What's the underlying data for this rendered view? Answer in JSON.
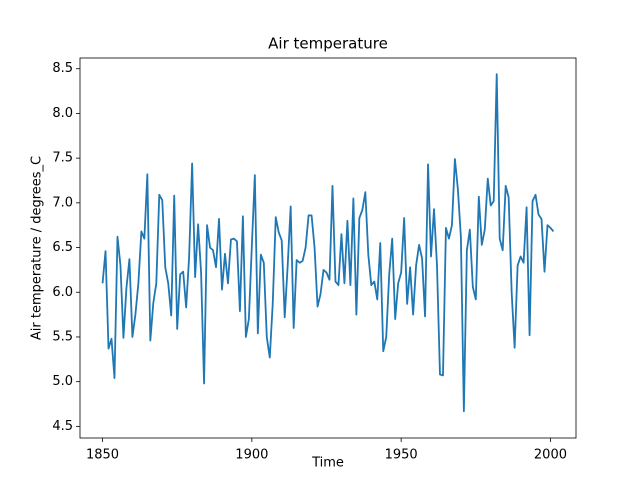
{
  "chart_data": {
    "type": "line",
    "title": "Air temperature",
    "xlabel": "Time",
    "ylabel": "Air temperature / degrees_C",
    "x": [
      1850,
      1851,
      1852,
      1853,
      1854,
      1855,
      1856,
      1857,
      1858,
      1859,
      1860,
      1861,
      1862,
      1863,
      1864,
      1865,
      1866,
      1867,
      1868,
      1869,
      1870,
      1871,
      1872,
      1873,
      1874,
      1875,
      1876,
      1877,
      1878,
      1879,
      1880,
      1881,
      1882,
      1883,
      1884,
      1885,
      1886,
      1887,
      1888,
      1889,
      1890,
      1891,
      1892,
      1893,
      1894,
      1895,
      1896,
      1897,
      1898,
      1899,
      1900,
      1901,
      1902,
      1903,
      1904,
      1905,
      1906,
      1907,
      1908,
      1909,
      1910,
      1911,
      1912,
      1913,
      1914,
      1915,
      1916,
      1917,
      1918,
      1919,
      1920,
      1921,
      1922,
      1923,
      1924,
      1925,
      1926,
      1927,
      1928,
      1929,
      1930,
      1931,
      1932,
      1933,
      1934,
      1935,
      1936,
      1937,
      1938,
      1939,
      1940,
      1941,
      1942,
      1943,
      1944,
      1945,
      1946,
      1947,
      1948,
      1949,
      1950,
      1951,
      1952,
      1953,
      1954,
      1955,
      1956,
      1957,
      1958,
      1959,
      1960,
      1961,
      1962,
      1963,
      1964,
      1965,
      1966,
      1967,
      1968,
      1969,
      1970,
      1971,
      1972,
      1973,
      1974,
      1975,
      1976,
      1977,
      1978,
      1979,
      1980,
      1981,
      1982,
      1983,
      1984,
      1985,
      1986,
      1987,
      1988,
      1989,
      1990,
      1991,
      1992,
      1993,
      1994,
      1995,
      1996,
      1997,
      1998,
      1999,
      2000,
      2001
    ],
    "series": [
      {
        "name": "Air temperature",
        "color": "#1f77b4",
        "values": [
          6.1,
          6.46,
          5.37,
          5.48,
          5.04,
          6.62,
          6.3,
          5.49,
          6.05,
          6.37,
          5.5,
          5.75,
          6.1,
          6.68,
          6.6,
          7.32,
          5.46,
          5.88,
          6.1,
          7.09,
          7.03,
          6.28,
          6.1,
          5.74,
          7.08,
          5.59,
          6.2,
          6.23,
          5.83,
          6.4,
          7.44,
          6.17,
          6.76,
          6.22,
          4.98,
          6.75,
          6.5,
          6.47,
          6.28,
          6.82,
          6.03,
          6.43,
          6.1,
          6.59,
          6.6,
          6.57,
          5.79,
          6.85,
          5.5,
          5.7,
          6.52,
          7.31,
          5.54,
          6.42,
          6.33,
          5.5,
          5.27,
          5.88,
          6.84,
          6.67,
          6.58,
          5.72,
          6.3,
          6.96,
          5.6,
          6.36,
          6.33,
          6.35,
          6.5,
          6.86,
          6.86,
          6.5,
          5.84,
          5.98,
          6.25,
          6.22,
          6.14,
          7.19,
          6.12,
          6.08,
          6.65,
          6.1,
          6.8,
          6.08,
          7.05,
          5.75,
          6.83,
          6.92,
          7.12,
          6.42,
          6.08,
          6.12,
          5.92,
          6.55,
          5.34,
          5.5,
          6.2,
          6.6,
          5.7,
          6.1,
          6.22,
          6.83,
          5.87,
          6.28,
          5.75,
          6.3,
          6.53,
          6.38,
          5.73,
          7.43,
          6.4,
          6.93,
          6.3,
          5.08,
          5.07,
          6.72,
          6.6,
          6.75,
          7.49,
          7.15,
          6.62,
          4.67,
          6.47,
          6.7,
          6.06,
          5.92,
          7.07,
          6.53,
          6.7,
          7.27,
          6.97,
          7.02,
          8.44,
          6.6,
          6.47,
          7.19,
          7.06,
          6.0,
          5.38,
          6.3,
          6.4,
          6.33,
          6.95,
          5.52,
          7.02,
          7.09,
          6.87,
          6.82,
          6.23,
          6.75,
          6.72,
          6.68
        ]
      }
    ],
    "xlim": [
      1842.45,
      2008.55
    ],
    "xticks": [
      1850,
      1900,
      1950,
      2000
    ],
    "ylim": [
      4.37,
      8.62
    ],
    "yticks": [
      4.5,
      {
        "value": 5,
        "label": "5.0"
      },
      5.5,
      {
        "value": 6,
        "label": "6.0"
      },
      6.5,
      {
        "value": 7,
        "label": "7.0"
      },
      7.5,
      {
        "value": 8,
        "label": "8.0"
      },
      8.5
    ]
  }
}
